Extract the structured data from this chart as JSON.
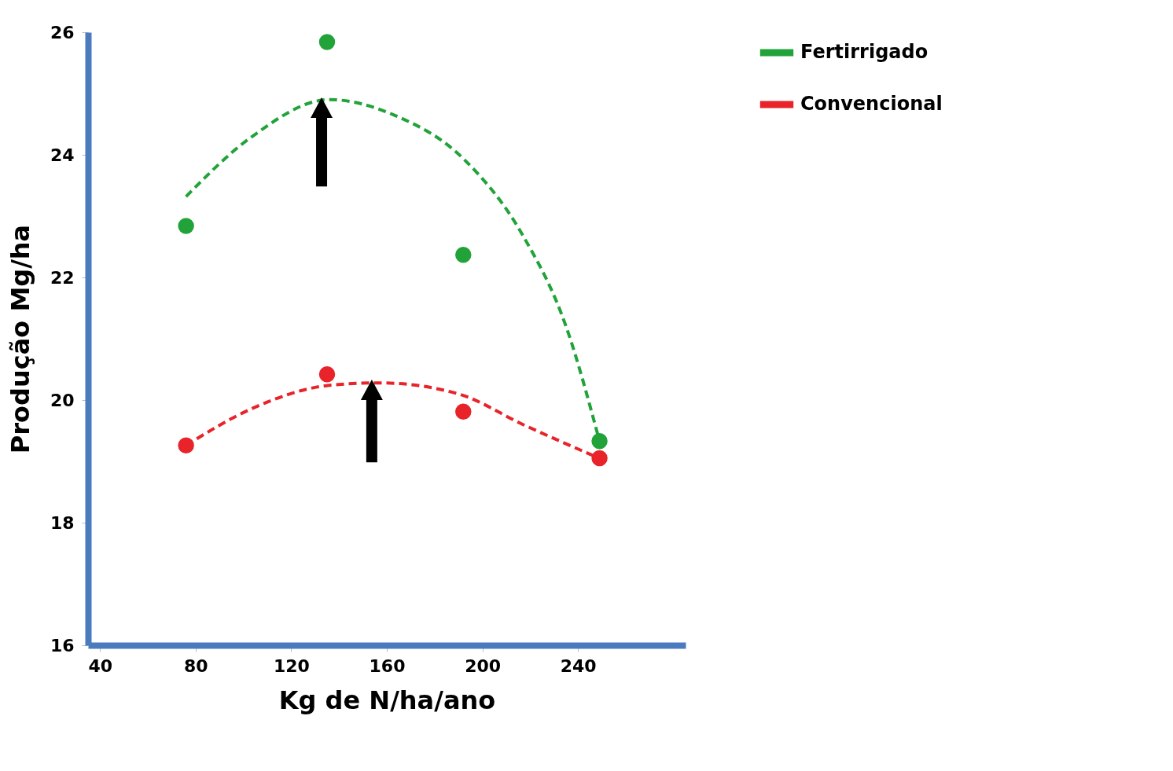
{
  "chart_data": {
    "type": "scatter",
    "xlabel": "Kg de N/ha/ano",
    "ylabel": "Produção  Mg/ha",
    "xlim": [
      35,
      285
    ],
    "xticks": [
      40,
      80,
      120,
      160,
      200,
      240
    ],
    "ylim": [
      16,
      26
    ],
    "yticks": [
      16,
      18,
      20,
      22,
      24,
      26
    ],
    "legend": "right",
    "line_style": "dashed",
    "series": [
      {
        "color": "#22a33a",
        "marker": "circle",
        "x": [
          76,
          135,
          192,
          249
        ],
        "values": [
          22.84,
          25.84,
          22.37,
          19.33
        ]
      },
      {
        "color": "#e8232a",
        "marker": "circle",
        "x": [
          76,
          135,
          192,
          249
        ],
        "values": [
          19.26,
          20.42,
          19.81,
          19.05
        ]
      },
      {
        "name": "Fertirrigado",
        "type": "line",
        "marker": "none",
        "color": "#22a33a",
        "x": [
          76,
          103,
          136,
          163,
          193,
          217,
          235,
          249
        ],
        "values": [
          23.32,
          24.28,
          24.9,
          24.65,
          23.9,
          22.68,
          21.2,
          19.33
        ]
      },
      {
        "name": "Convencional",
        "type": "line",
        "marker": "none",
        "color": "#e8232a",
        "x": [
          76,
          103,
          136,
          157,
          190,
          217,
          249
        ],
        "values": [
          19.26,
          19.85,
          20.24,
          20.28,
          20.1,
          19.6,
          19.05
        ]
      }
    ]
  }
}
